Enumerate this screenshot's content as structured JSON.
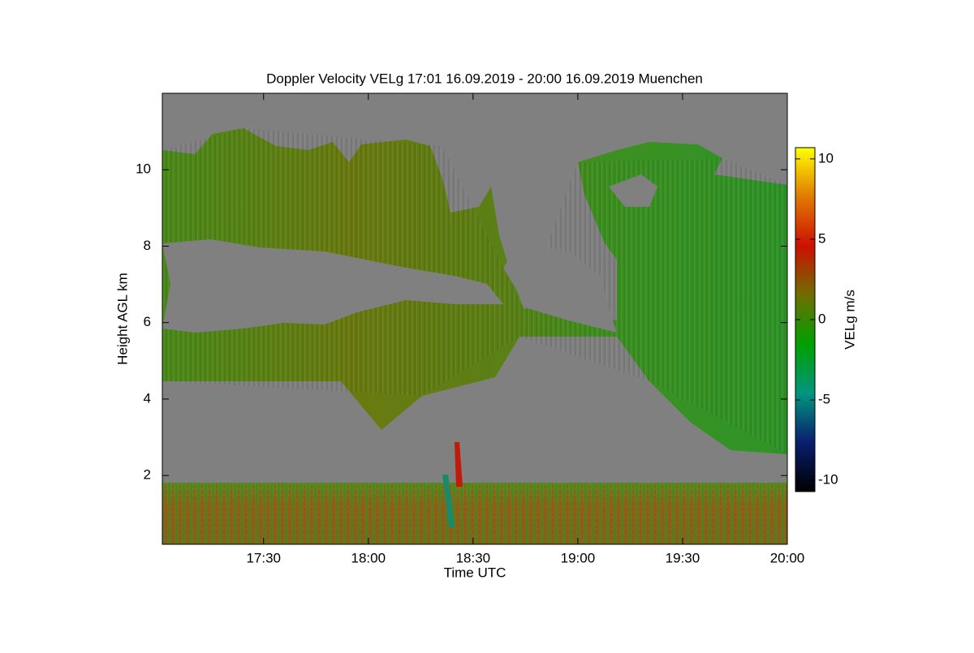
{
  "chart_data": {
    "type": "heatmap",
    "title": "Doppler Velocity VELg   17:01 16.09.2019 - 20:00 16.09.2019 Muenchen",
    "x_label": "Time UTC",
    "y_label": "Height AGL km",
    "xlim": [
      17.0167,
      20.0
    ],
    "xticks": [
      {
        "value": 17.5,
        "label": "17:30"
      },
      {
        "value": 18.0,
        "label": "18:00"
      },
      {
        "value": 18.5,
        "label": "18:30"
      },
      {
        "value": 19.0,
        "label": "19:00"
      },
      {
        "value": 19.5,
        "label": "19:30"
      },
      {
        "value": 20.0,
        "label": "20:00"
      }
    ],
    "ylim": [
      0.2,
      12
    ],
    "yticks": [
      2,
      4,
      6,
      8,
      10
    ],
    "colorbar": {
      "label": "VELg m/s",
      "lim": [
        -10.7,
        10.7
      ],
      "ticks": [
        -10,
        -5,
        0,
        5,
        10
      ],
      "colormap": [
        "#000000",
        "#0a1d6e",
        "#00967e",
        "#00a000",
        "#6e6e00",
        "#cc1000",
        "#e07a00",
        "#ffff00"
      ]
    },
    "background": "#808080"
  }
}
